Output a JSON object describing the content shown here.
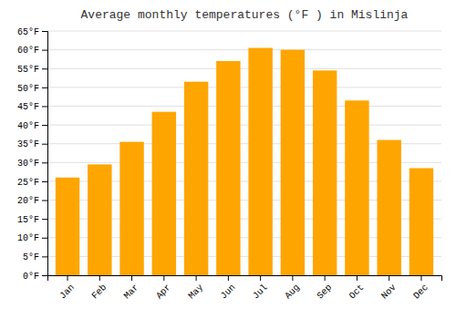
{
  "chart_data": {
    "type": "bar",
    "title": "Average monthly temperatures (°F ) in Mislinja",
    "categories": [
      "Jan",
      "Feb",
      "Mar",
      "Apr",
      "May",
      "Jun",
      "Jul",
      "Aug",
      "Sep",
      "Oct",
      "Nov",
      "Dec"
    ],
    "values": [
      26,
      29.5,
      35.5,
      43.5,
      51.5,
      57,
      60.5,
      60,
      54.5,
      46.5,
      36,
      28.5
    ],
    "color": "#FFA500",
    "ylim": [
      0,
      65
    ],
    "yticks": [
      {
        "value": 0,
        "label": "0°F"
      },
      {
        "value": 5,
        "label": "5°F"
      },
      {
        "value": 10,
        "label": "10°F"
      },
      {
        "value": 15,
        "label": "15°F"
      },
      {
        "value": 20,
        "label": "20°F"
      },
      {
        "value": 25,
        "label": "25°F"
      },
      {
        "value": 30,
        "label": "30°F"
      },
      {
        "value": 35,
        "label": "35°F"
      },
      {
        "value": 40,
        "label": "40°F"
      },
      {
        "value": 45,
        "label": "45°F"
      },
      {
        "value": 50,
        "label": "50°F"
      },
      {
        "value": 55,
        "label": "55°F"
      },
      {
        "value": 60,
        "label": "60°F"
      },
      {
        "value": 65,
        "label": "65°F"
      }
    ],
    "grid": true
  }
}
